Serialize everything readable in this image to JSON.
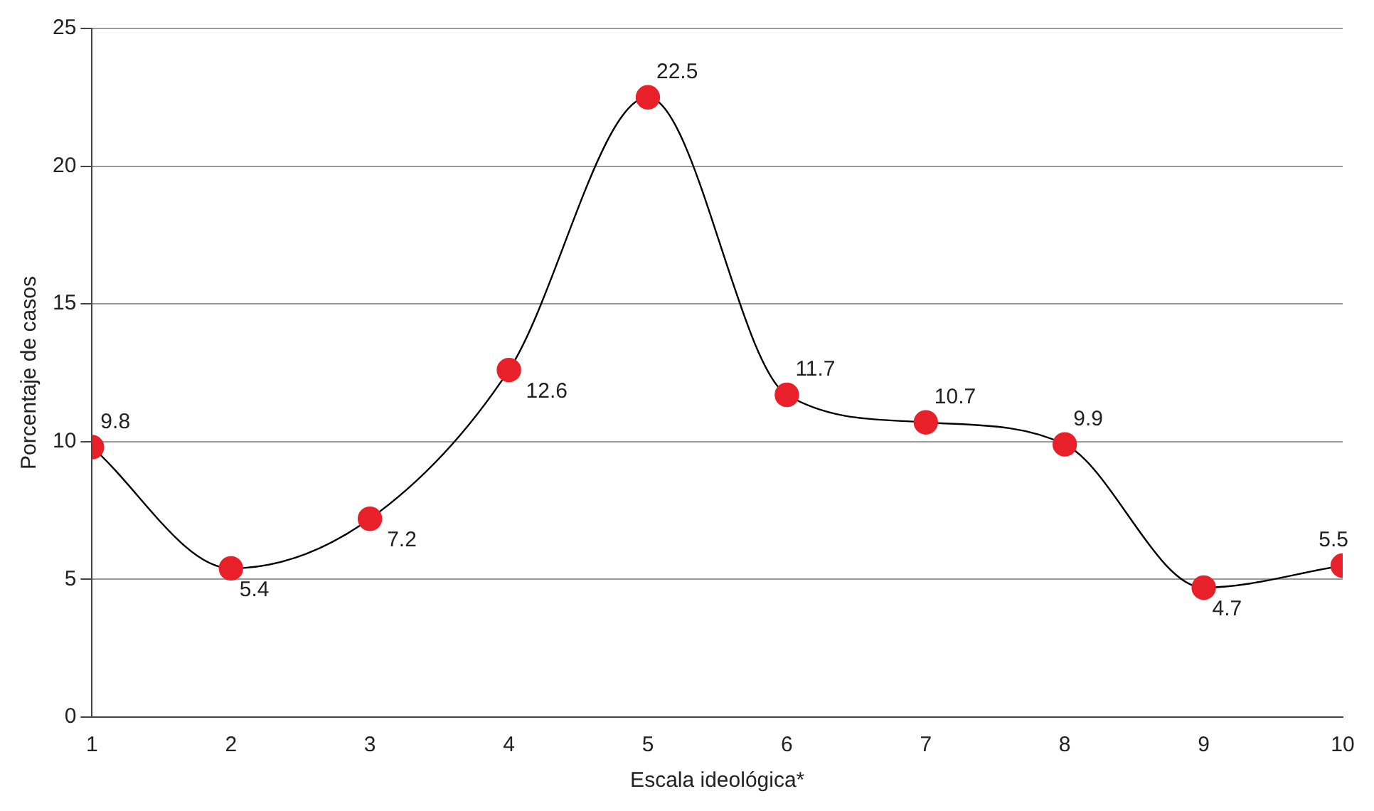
{
  "chart_data": {
    "type": "line",
    "xlabel": "Escala ideológica*",
    "ylabel": "Porcentaje de casos",
    "x": [
      1,
      2,
      3,
      4,
      5,
      6,
      7,
      8,
      9,
      10
    ],
    "series": [
      {
        "color": "#e8202a",
        "values": [
          9.8,
          5.4,
          7.2,
          12.6,
          22.5,
          11.7,
          10.7,
          9.9,
          4.7,
          5.5
        ]
      }
    ],
    "xlim": [
      1,
      10
    ],
    "xticks": [
      1,
      2,
      3,
      4,
      5,
      6,
      7,
      8,
      9,
      10
    ],
    "ylim": [
      0,
      25
    ],
    "yticks": [
      0,
      5,
      10,
      15,
      20,
      25
    ],
    "grid": "y",
    "marker": "circle",
    "line_style": "solid",
    "data_labels": true,
    "legend": false
  }
}
